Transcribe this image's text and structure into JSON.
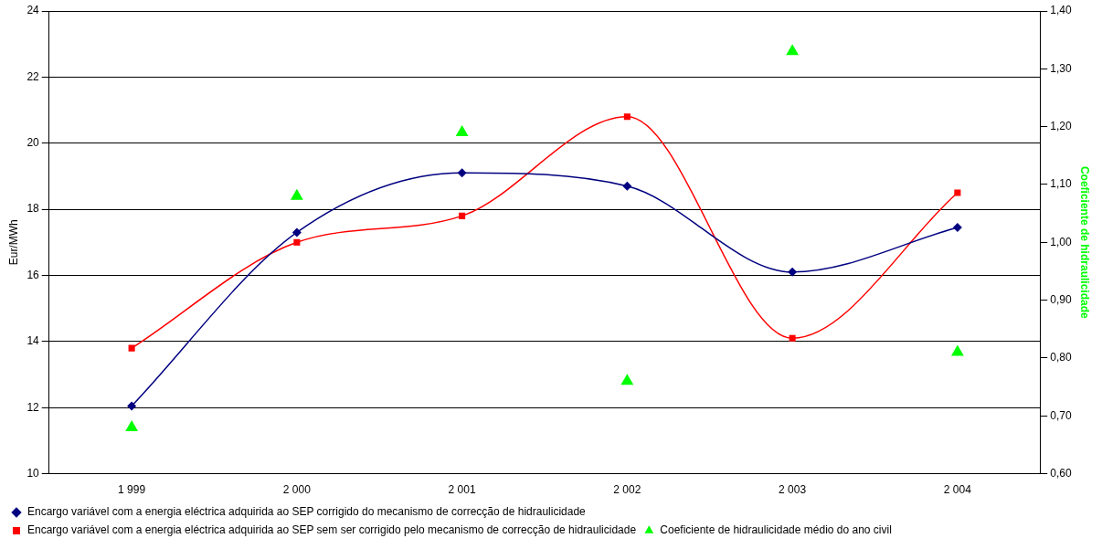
{
  "chart_data": {
    "type": "line",
    "categories": [
      "1 999",
      "2 000",
      "2 001",
      "2 002",
      "2 003",
      "2 004"
    ],
    "ylabel": "Eur/MWh",
    "y2label": "Coeficiente de hidraulicidade",
    "ylim": [
      10,
      24
    ],
    "yticks": [
      10,
      12,
      14,
      16,
      18,
      20,
      22,
      24
    ],
    "y2lim": [
      0.6,
      1.4
    ],
    "y2ticks": [
      {
        "value": 0.6,
        "label": "0,60"
      },
      {
        "value": 0.7,
        "label": "0,70"
      },
      {
        "value": 0.8,
        "label": "0,80"
      },
      {
        "value": 0.9,
        "label": "0,90"
      },
      {
        "value": 1.0,
        "label": "1,00"
      },
      {
        "value": 1.1,
        "label": "1,10"
      },
      {
        "value": 1.2,
        "label": "1,20"
      },
      {
        "value": 1.3,
        "label": "1,30"
      },
      {
        "value": 1.4,
        "label": "1,40"
      }
    ],
    "grid": "y",
    "legend": "bottom",
    "series": [
      {
        "name": "Encargo variável com a energia eléctrica adquirida ao SEP corrigido do mecanismo de correcção de hidraulicidade",
        "color": "#000080",
        "marker": "diamond",
        "values": [
          12.05,
          17.3,
          19.1,
          18.7,
          16.1,
          17.45
        ]
      },
      {
        "name": "Encargo variável com a energia eléctrica adquirida ao SEP sem ser corrigido pelo mecanismo de correcção de hidraulicidade",
        "color": "#ff0000",
        "marker": "square",
        "values": [
          13.8,
          17.0,
          17.8,
          20.8,
          14.1,
          18.5
        ]
      },
      {
        "name": "Coeficiente de hidraulicidade médio do ano civil",
        "type": "scatter",
        "axis": "y2",
        "color": "#00ff00",
        "marker": "triangle",
        "values": [
          0.68,
          1.08,
          1.19,
          0.76,
          1.33,
          0.81
        ]
      }
    ]
  }
}
